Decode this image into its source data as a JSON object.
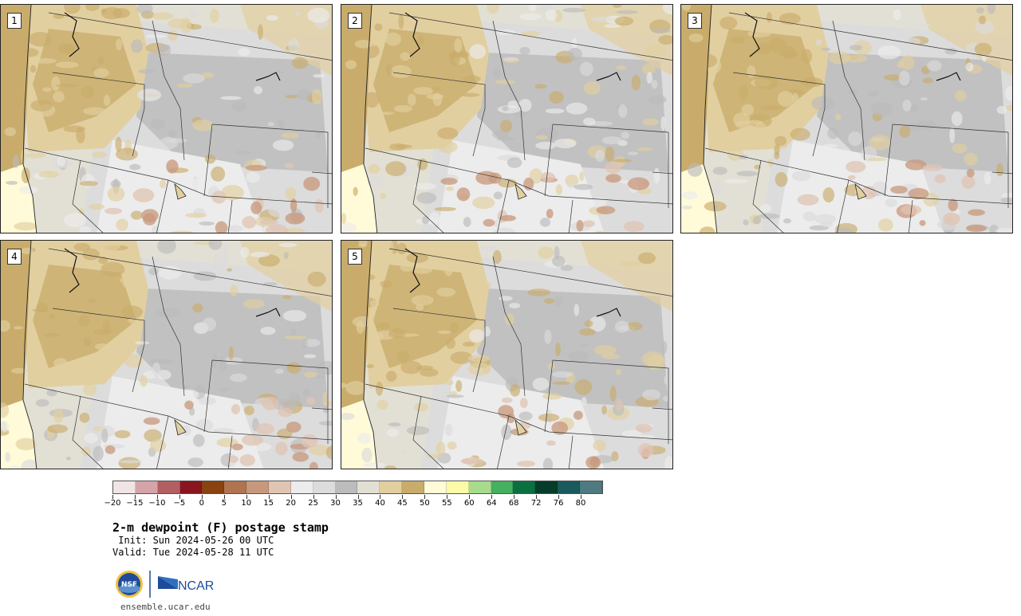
{
  "panels": [
    {
      "number": "1"
    },
    {
      "number": "2"
    },
    {
      "number": "3"
    },
    {
      "number": "4"
    },
    {
      "number": "5"
    }
  ],
  "colorbar": {
    "colors": [
      "#f0e4e4",
      "#d4a4a8",
      "#b25e62",
      "#8a1420",
      "#8a4210",
      "#b07450",
      "#c8987c",
      "#e0c4b4",
      "#ececec",
      "#dcdcdc",
      "#bcbcbc",
      "#e2e0d4",
      "#e2cfa0",
      "#c9ac6c",
      "#fffad8",
      "#fafaa8",
      "#a6dc8c",
      "#44b060",
      "#0a7040",
      "#053c2a",
      "#1a5a5c",
      "#4e7a80"
    ],
    "tick_labels": [
      "−20",
      "−15",
      "−10",
      "−5",
      "0",
      "5",
      "10",
      "15",
      "20",
      "25",
      "30",
      "35",
      "40",
      "45",
      "50",
      "55",
      "60",
      "64",
      "68",
      "72",
      "76",
      "80"
    ]
  },
  "title": "2-m dewpoint (F) postage stamp",
  "init": " Init: Sun 2024-05-26 00 UTC",
  "valid": "Valid: Tue 2024-05-28 11 UTC",
  "logo": {
    "nsf": "NSF",
    "ncar": "NCAR"
  },
  "site": "ensemble.ucar.edu"
}
